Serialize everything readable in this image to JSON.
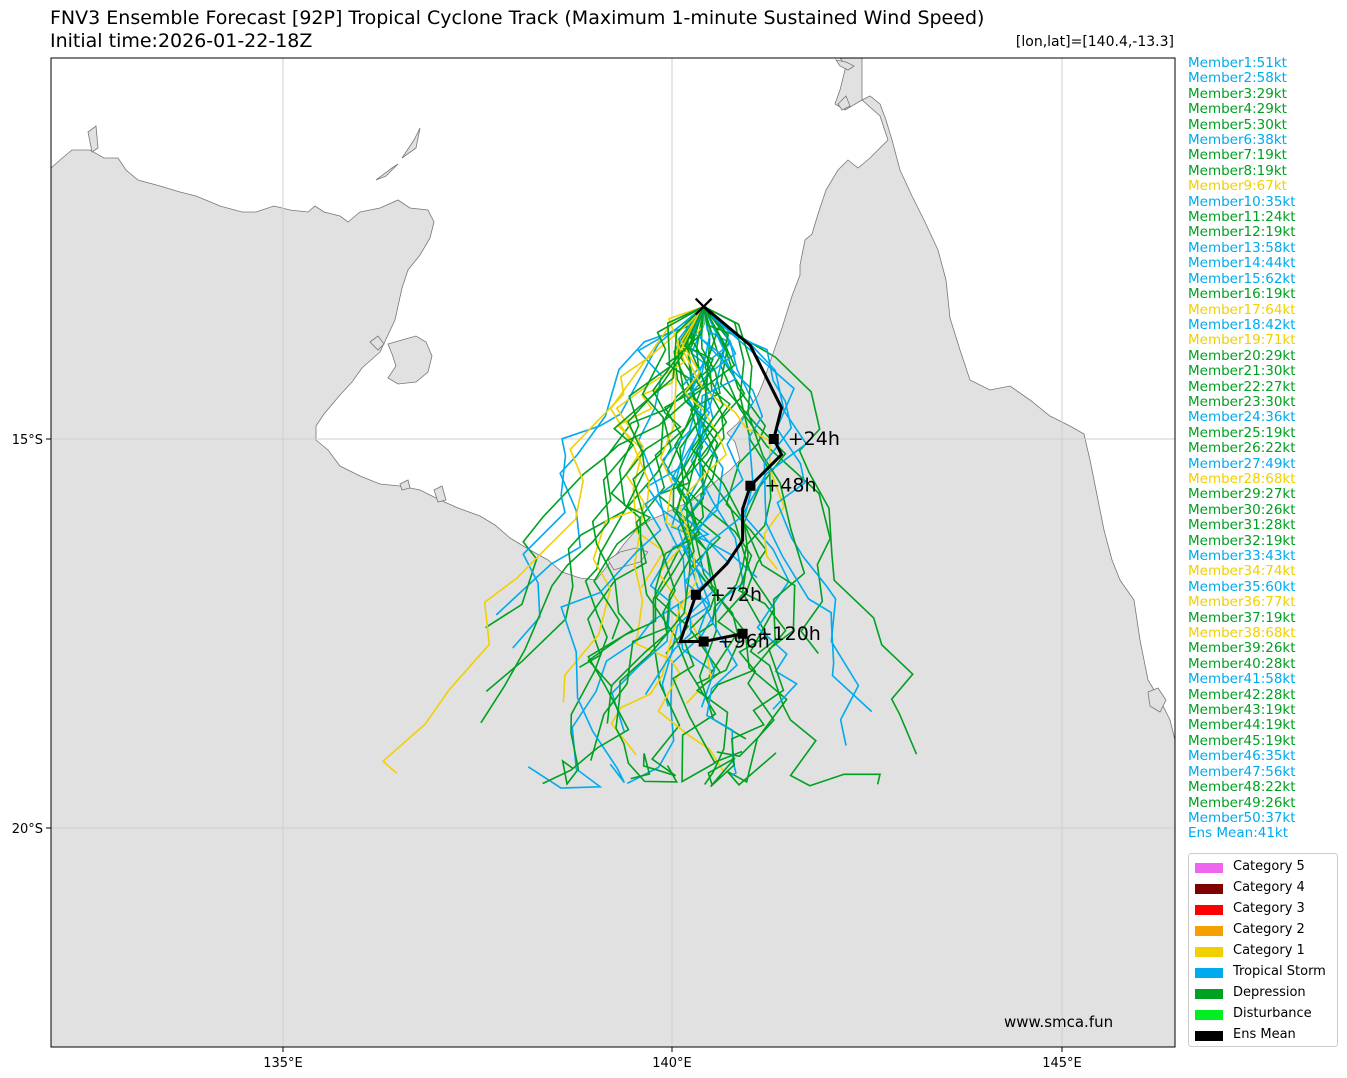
{
  "title_line1": "FNV3 Ensemble Forecast [92P] Tropical Cyclone Track (Maximum 1-minute Sustained Wind Speed)",
  "title_line2": "Initial time:2026-01-22-18Z",
  "lonlat": "[lon,lat]=[140.4,-13.3]",
  "watermark": "www.smca.fun",
  "colors": {
    "depression": "#00a020",
    "disturbance": "#00ee22",
    "tropical_storm": "#00aaee",
    "category1": "#f0d000",
    "category2": "#f5a000",
    "category3": "#ff0000",
    "category4": "#800000",
    "category5": "#ee66ee",
    "ens_mean": "#000000",
    "land": "#e1e1e1",
    "ocean": "#ffffff"
  },
  "axes": {
    "lon_ticks": [
      "135°E",
      "140°E",
      "145°E"
    ],
    "lat_ticks": [
      "15°S",
      "20°S"
    ]
  },
  "members": [
    {
      "label": "Member1:51kt",
      "cat": "tropical_storm"
    },
    {
      "label": "Member2:58kt",
      "cat": "tropical_storm"
    },
    {
      "label": "Member3:29kt",
      "cat": "depression"
    },
    {
      "label": "Member4:29kt",
      "cat": "depression"
    },
    {
      "label": "Member5:30kt",
      "cat": "depression"
    },
    {
      "label": "Member6:38kt",
      "cat": "tropical_storm"
    },
    {
      "label": "Member7:19kt",
      "cat": "depression"
    },
    {
      "label": "Member8:19kt",
      "cat": "depression"
    },
    {
      "label": "Member9:67kt",
      "cat": "category1"
    },
    {
      "label": "Member10:35kt",
      "cat": "tropical_storm"
    },
    {
      "label": "Member11:24kt",
      "cat": "depression"
    },
    {
      "label": "Member12:19kt",
      "cat": "depression"
    },
    {
      "label": "Member13:58kt",
      "cat": "tropical_storm"
    },
    {
      "label": "Member14:44kt",
      "cat": "tropical_storm"
    },
    {
      "label": "Member15:62kt",
      "cat": "tropical_storm"
    },
    {
      "label": "Member16:19kt",
      "cat": "depression"
    },
    {
      "label": "Member17:64kt",
      "cat": "category1"
    },
    {
      "label": "Member18:42kt",
      "cat": "tropical_storm"
    },
    {
      "label": "Member19:71kt",
      "cat": "category1"
    },
    {
      "label": "Member20:29kt",
      "cat": "depression"
    },
    {
      "label": "Member21:30kt",
      "cat": "depression"
    },
    {
      "label": "Member22:27kt",
      "cat": "depression"
    },
    {
      "label": "Member23:30kt",
      "cat": "depression"
    },
    {
      "label": "Member24:36kt",
      "cat": "tropical_storm"
    },
    {
      "label": "Member25:19kt",
      "cat": "depression"
    },
    {
      "label": "Member26:22kt",
      "cat": "depression"
    },
    {
      "label": "Member27:49kt",
      "cat": "tropical_storm"
    },
    {
      "label": "Member28:68kt",
      "cat": "category1"
    },
    {
      "label": "Member29:27kt",
      "cat": "depression"
    },
    {
      "label": "Member30:26kt",
      "cat": "depression"
    },
    {
      "label": "Member31:28kt",
      "cat": "depression"
    },
    {
      "label": "Member32:19kt",
      "cat": "depression"
    },
    {
      "label": "Member33:43kt",
      "cat": "tropical_storm"
    },
    {
      "label": "Member34:74kt",
      "cat": "category1"
    },
    {
      "label": "Member35:60kt",
      "cat": "tropical_storm"
    },
    {
      "label": "Member36:77kt",
      "cat": "category1"
    },
    {
      "label": "Member37:19kt",
      "cat": "depression"
    },
    {
      "label": "Member38:68kt",
      "cat": "category1"
    },
    {
      "label": "Member39:26kt",
      "cat": "depression"
    },
    {
      "label": "Member40:28kt",
      "cat": "depression"
    },
    {
      "label": "Member41:58kt",
      "cat": "tropical_storm"
    },
    {
      "label": "Member42:28kt",
      "cat": "depression"
    },
    {
      "label": "Member43:19kt",
      "cat": "depression"
    },
    {
      "label": "Member44:19kt",
      "cat": "depression"
    },
    {
      "label": "Member45:19kt",
      "cat": "depression"
    },
    {
      "label": "Member46:35kt",
      "cat": "tropical_storm"
    },
    {
      "label": "Member47:56kt",
      "cat": "tropical_storm"
    },
    {
      "label": "Member48:22kt",
      "cat": "depression"
    },
    {
      "label": "Member49:26kt",
      "cat": "depression"
    },
    {
      "label": "Member50:37kt",
      "cat": "tropical_storm"
    },
    {
      "label": "Ens Mean:41kt",
      "cat": "tropical_storm"
    }
  ],
  "legend": [
    {
      "label": "Category 5",
      "color": "#ee66ee"
    },
    {
      "label": "Category 4",
      "color": "#800000"
    },
    {
      "label": "Category 3",
      "color": "#ff0000"
    },
    {
      "label": "Category 2",
      "color": "#f5a000"
    },
    {
      "label": "Category 1",
      "color": "#f0d000"
    },
    {
      "label": "Tropical Storm",
      "color": "#00aaee"
    },
    {
      "label": "Depression",
      "color": "#00a020"
    },
    {
      "label": "Disturbance",
      "color": "#00ee22"
    },
    {
      "label": "Ens Mean",
      "color": "#000000"
    }
  ],
  "ens_mean_track": {
    "origin": {
      "lon": 140.4,
      "lat": -13.3
    },
    "points": [
      {
        "lon": 140.4,
        "lat": -13.3
      },
      {
        "lon": 141.0,
        "lat": -13.8
      },
      {
        "lon": 141.4,
        "lat": -14.6
      },
      {
        "lon": 141.3,
        "lat": -15.0,
        "label": "+24h"
      },
      {
        "lon": 141.4,
        "lat": -15.2
      },
      {
        "lon": 141.1,
        "lat": -15.5
      },
      {
        "lon": 141.0,
        "lat": -15.6,
        "label": "+48h"
      },
      {
        "lon": 140.9,
        "lat": -15.9
      },
      {
        "lon": 140.9,
        "lat": -16.3
      },
      {
        "lon": 140.7,
        "lat": -16.6
      },
      {
        "lon": 140.3,
        "lat": -17.0,
        "label": "+72h"
      },
      {
        "lon": 140.1,
        "lat": -17.6
      },
      {
        "lon": 140.4,
        "lat": -17.6,
        "label": "+96h"
      },
      {
        "lon": 140.9,
        "lat": -17.5,
        "label": "+120h"
      }
    ]
  }
}
